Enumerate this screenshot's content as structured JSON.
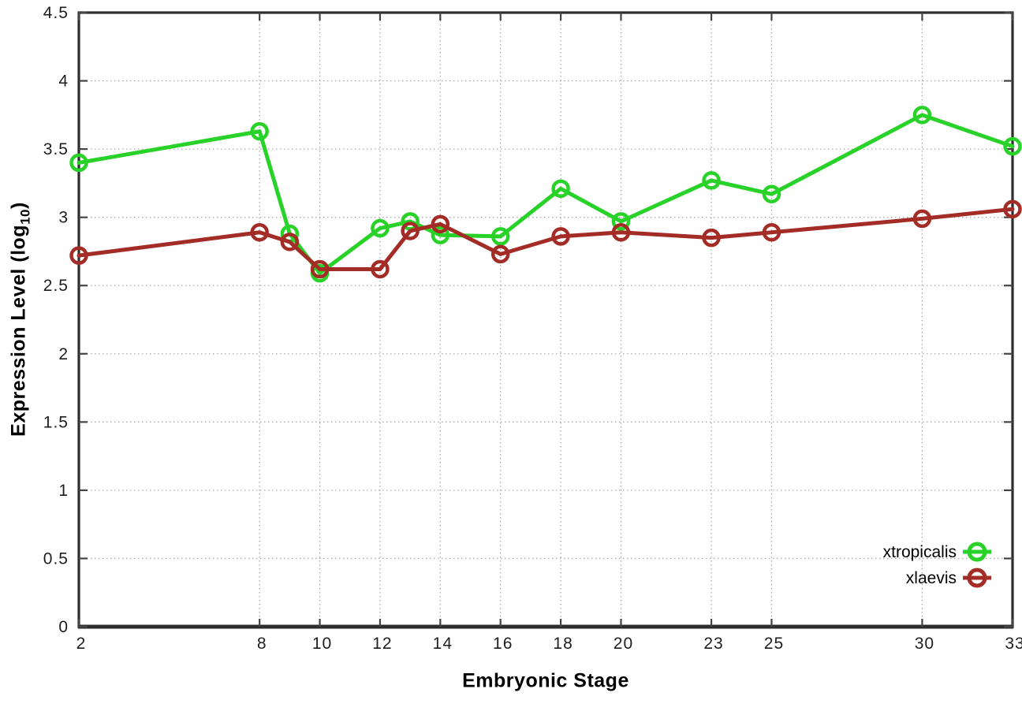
{
  "chart_data": {
    "type": "line",
    "title": "",
    "xlabel": "Embryonic Stage",
    "ylabel": "Expression Level (log10)",
    "ylabel_parts": {
      "main": "Expression Level (log",
      "sub": "10",
      "end": ")"
    },
    "xlim": [
      2,
      33
    ],
    "ylim": [
      0,
      4.5
    ],
    "grid": true,
    "marker": "open-circle",
    "legend_position": "inside-bottom-right",
    "xticks": [
      2,
      8,
      10,
      12,
      14,
      16,
      18,
      20,
      23,
      25,
      30,
      33
    ],
    "xtick_labels": [
      "2",
      "8",
      "10",
      "12",
      "14",
      "16",
      "18",
      "20",
      "23",
      "25",
      "30",
      "33"
    ],
    "yticks": [
      0,
      0.5,
      1,
      1.5,
      2,
      2.5,
      3,
      3.5,
      4,
      4.5
    ],
    "ytick_labels": [
      "0",
      "0.5",
      "1",
      "1.5",
      "2",
      "2.5",
      "3",
      "3.5",
      "4",
      "4.5"
    ],
    "x": [
      2,
      8,
      9,
      10,
      12,
      13,
      14,
      16,
      18,
      20,
      23,
      25,
      30,
      33
    ],
    "series": [
      {
        "name": "xtropicalis",
        "color": "#28d228",
        "values": [
          3.4,
          3.63,
          2.88,
          2.59,
          2.92,
          2.97,
          2.87,
          2.86,
          3.21,
          2.97,
          3.27,
          3.17,
          3.75,
          3.52
        ]
      },
      {
        "name": "xlaevis",
        "color": "#a32c26",
        "values": [
          2.72,
          2.89,
          2.82,
          2.62,
          2.62,
          2.9,
          2.95,
          2.73,
          2.86,
          2.89,
          2.85,
          2.89,
          2.99,
          3.06
        ]
      }
    ]
  },
  "colors": {
    "background": "#ffffff",
    "plot_border": "#2d2d2d",
    "gridline": "#ababab",
    "tick_mark": "#444444",
    "tick_text": "#1e1e1e",
    "axis_title_text": "#000000"
  }
}
